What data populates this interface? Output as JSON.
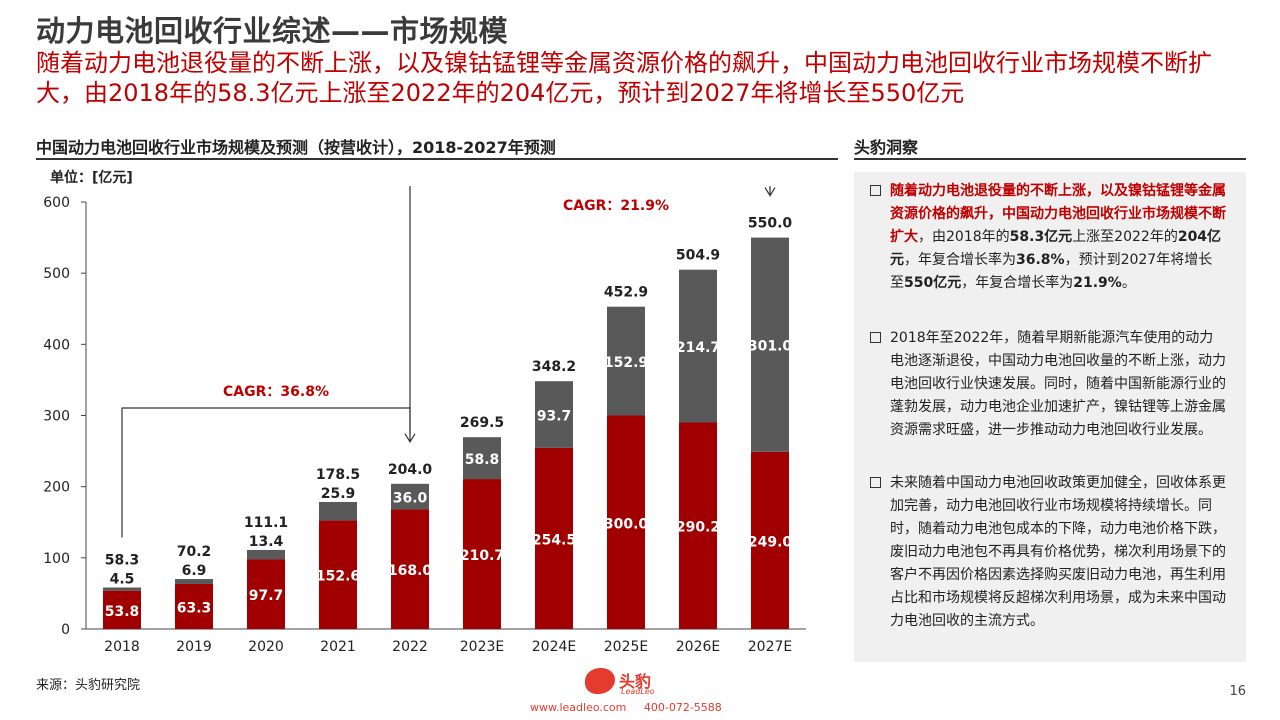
{
  "page": {
    "title": "动力电池回收行业综述——市场规模",
    "subtitle": "随着动力电池退役量的不断上涨，以及镍钴锰锂等金属资源价格的飙升，中国动力电池回收行业市场规模不断扩大，由2018年的58.3亿元上涨至2022年的204亿元，预计到2027年将增长至550亿元",
    "chart_heading": "中国动力电池回收行业市场规模及预测（按营收计），2018-2027年预测",
    "side_heading": "头豹洞察",
    "source": "来源：头豹研究院",
    "page_number": "16"
  },
  "footer": {
    "logo_cn": "头豹",
    "logo_en": "LeadLeo",
    "website": "www.leadleo.com",
    "phone": "400-072-5588"
  },
  "colors": {
    "accent": "#c00000",
    "bar_dark_red": "#a00000",
    "bar_gray": "#595959",
    "panel_bg": "#f0f0f0"
  },
  "insights": [
    [
      {
        "t": "随着动力电池退役量的不断上涨，以及镍钴锰锂等金属资源价格的飙升，中国动力电池回收行业市场规模不断扩大",
        "s": "red"
      },
      {
        "t": "，由2018年的",
        "s": ""
      },
      {
        "t": "58.3亿元",
        "s": "b"
      },
      {
        "t": "上涨至2022年的",
        "s": ""
      },
      {
        "t": "204亿元",
        "s": "b"
      },
      {
        "t": "，年复合增长率为",
        "s": ""
      },
      {
        "t": "36.8%",
        "s": "b"
      },
      {
        "t": "，预计到2027年将增长至",
        "s": ""
      },
      {
        "t": "550亿元",
        "s": "b"
      },
      {
        "t": "，年复合增长率为",
        "s": ""
      },
      {
        "t": "21.9%",
        "s": "b"
      },
      {
        "t": "。",
        "s": ""
      }
    ],
    [
      {
        "t": "2018年至2022年，随着早期新能源汽车使用的动力电池逐渐退役，中国动力电池回收量的不断上涨，动力电池回收行业快速发展。同时，随着中国新能源行业的蓬勃发展，动力电池企业加速扩产，镍钴锂等上游金属资源需求旺盛，进一步推动动力电池回收行业发展。",
        "s": ""
      }
    ],
    [
      {
        "t": "未来随着中国动力电池回收政策更加健全，回收体系更加完善，动力电池回收行业市场规模将持续增长。同时，随着动力电池包成本的下降，动力电池价格下跌，废旧动力电池包不再具有价格优势，梯次利用场景下的客户不再因价格因素选择购买废旧动力电池，再生利用占比和市场规模将反超梯次利用场景，成为未来中国动力电池回收的主流方式。",
        "s": ""
      }
    ]
  ],
  "chart_data": {
    "type": "bar",
    "stacked": true,
    "unit_label": "单位：[亿元]",
    "categories": [
      "2018",
      "2019",
      "2020",
      "2021",
      "2022",
      "2023E",
      "2024E",
      "2025E",
      "2026E",
      "2027E"
    ],
    "series": [
      {
        "values": [
          53.8,
          63.3,
          97.7,
          152.6,
          168.0,
          210.7,
          254.5,
          300.0,
          290.2,
          249.0
        ],
        "color": "#a00000"
      },
      {
        "values": [
          4.5,
          6.9,
          13.4,
          25.9,
          36.0,
          58.8,
          93.7,
          152.9,
          214.7,
          301.0
        ],
        "color": "#595959"
      }
    ],
    "totals": [
      58.3,
      70.2,
      111.1,
      178.5,
      204.0,
      269.5,
      348.2,
      452.9,
      504.9,
      550.0
    ],
    "ylim": [
      0,
      600
    ],
    "yticks": [
      0,
      100,
      200,
      300,
      400,
      500,
      600
    ],
    "grid": false,
    "legend": "none",
    "annotations": [
      {
        "text": "CAGR：36.8%",
        "from": "2018",
        "to": "2022"
      },
      {
        "text": "CAGR：21.9%",
        "from": "2022",
        "to": "2027E"
      }
    ]
  }
}
